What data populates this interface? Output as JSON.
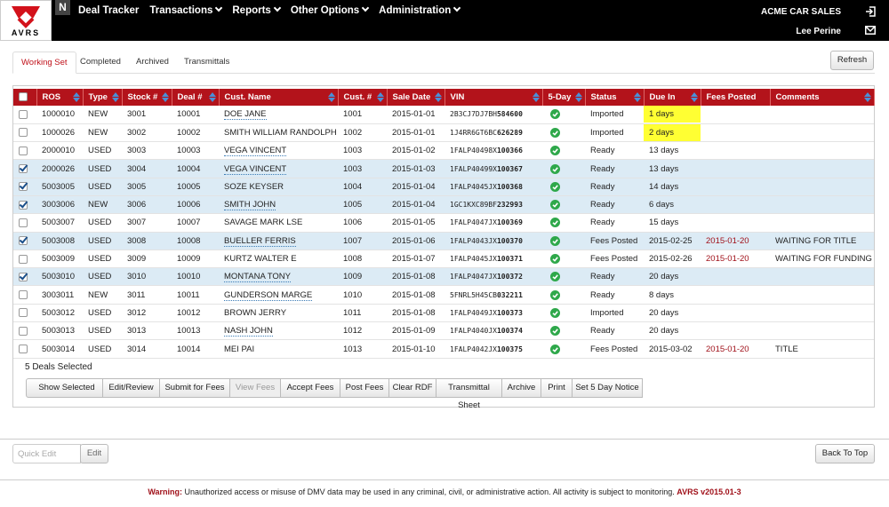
{
  "header": {
    "logo": "AVRS",
    "nav": [
      "Deal Tracker",
      "Transactions",
      "Reports",
      "Other Options",
      "Administration"
    ],
    "dealer": "ACME CAR SALES",
    "user": "Lee Perine"
  },
  "tabs": {
    "items": [
      "Working Set",
      "Completed",
      "Archived",
      "Transmittals"
    ],
    "active": 0,
    "refresh": "Refresh"
  },
  "table": {
    "columns": [
      "ROS",
      "Type",
      "Stock #",
      "Deal #",
      "Cust. Name",
      "Cust. #",
      "Sale Date",
      "VIN",
      "5-Day",
      "Status",
      "Due In",
      "Fees Posted",
      "Comments"
    ],
    "rows": [
      {
        "checked": false,
        "ros": "1000010",
        "type": "NEW",
        "stock": "3001",
        "deal": "10001",
        "name": "DOE JANE",
        "name_link": true,
        "cust": "1001",
        "sale_date": "2015-01-01",
        "vin": [
          "2B3CJ7DJ7BH",
          "584600"
        ],
        "five_day": true,
        "status": "Imported",
        "due_in": "1 days",
        "due_flag": true,
        "fees_posted": null,
        "comments": null
      },
      {
        "checked": false,
        "ros": "1000026",
        "type": "NEW",
        "stock": "3002",
        "deal": "10002",
        "name": "SMITH WILLIAM RANDOLPH",
        "name_link": false,
        "cust": "1002",
        "sale_date": "2015-01-01",
        "vin": [
          "1J4RR6GT6BC",
          "626289"
        ],
        "five_day": true,
        "status": "Imported",
        "due_in": "2 days",
        "due_flag": true,
        "fees_posted": null,
        "comments": null
      },
      {
        "checked": false,
        "ros": "2000010",
        "type": "USED",
        "stock": "3003",
        "deal": "10003",
        "name": "VEGA VINCENT",
        "name_link": true,
        "cust": "1003",
        "sale_date": "2015-01-02",
        "vin": [
          "1FALP40498X",
          "100366"
        ],
        "five_day": true,
        "status": "Ready",
        "due_in": "13 days",
        "due_flag": false,
        "fees_posted": null,
        "comments": null
      },
      {
        "checked": true,
        "ros": "2000026",
        "type": "USED",
        "stock": "3004",
        "deal": "10004",
        "name": "VEGA VINCENT",
        "name_link": true,
        "cust": "1003",
        "sale_date": "2015-01-03",
        "vin": [
          "1FALP40499X",
          "100367"
        ],
        "five_day": true,
        "status": "Ready",
        "due_in": "13 days",
        "due_flag": false,
        "fees_posted": null,
        "comments": null
      },
      {
        "checked": true,
        "ros": "5003005",
        "type": "USED",
        "stock": "3005",
        "deal": "10005",
        "name": "SOZE KEYSER",
        "name_link": false,
        "cust": "1004",
        "sale_date": "2015-01-04",
        "vin": [
          "1FALP4045JX",
          "100368"
        ],
        "five_day": true,
        "status": "Ready",
        "due_in": "14 days",
        "due_flag": false,
        "fees_posted": null,
        "comments": null
      },
      {
        "checked": true,
        "ros": "3003006",
        "type": "NEW",
        "stock": "3006",
        "deal": "10006",
        "name": "SMITH JOHN",
        "name_link": true,
        "cust": "1005",
        "sale_date": "2015-01-04",
        "vin": [
          "1GC1KXC89BF",
          "232993"
        ],
        "five_day": true,
        "status": "Ready",
        "due_in": "6 days",
        "due_flag": false,
        "fees_posted": null,
        "comments": null
      },
      {
        "checked": false,
        "ros": "5003007",
        "type": "USED",
        "stock": "3007",
        "deal": "10007",
        "name": "SAVAGE MARK LSE",
        "name_link": false,
        "cust": "1006",
        "sale_date": "2015-01-05",
        "vin": [
          "1FALP4047JX",
          "100369"
        ],
        "five_day": true,
        "status": "Ready",
        "due_in": "15 days",
        "due_flag": false,
        "fees_posted": null,
        "comments": null
      },
      {
        "checked": true,
        "ros": "5003008",
        "type": "USED",
        "stock": "3008",
        "deal": "10008",
        "name": "BUELLER FERRIS",
        "name_link": true,
        "cust": "1007",
        "sale_date": "2015-01-06",
        "vin": [
          "1FALP4043JX",
          "100370"
        ],
        "five_day": true,
        "status": "Fees Posted",
        "due_in": "2015-02-25",
        "due_flag": false,
        "fees_posted": "2015-01-20",
        "comments": "WAITING FOR TITLE"
      },
      {
        "checked": false,
        "ros": "5003009",
        "type": "USED",
        "stock": "3009",
        "deal": "10009",
        "name": "KURTZ WALTER E",
        "name_link": false,
        "cust": "1008",
        "sale_date": "2015-01-07",
        "vin": [
          "1FALP4045JX",
          "100371"
        ],
        "five_day": true,
        "status": "Fees Posted",
        "due_in": "2015-02-26",
        "due_flag": false,
        "fees_posted": "2015-01-20",
        "comments": "WAITING FOR FUNDING"
      },
      {
        "checked": true,
        "ros": "5003010",
        "type": "USED",
        "stock": "3010",
        "deal": "10010",
        "name": "MONTANA TONY",
        "name_link": true,
        "cust": "1009",
        "sale_date": "2015-01-08",
        "vin": [
          "1FALP4047JX",
          "100372"
        ],
        "five_day": true,
        "status": "Ready",
        "due_in": "20 days",
        "due_flag": false,
        "fees_posted": null,
        "comments": null
      },
      {
        "checked": false,
        "ros": "3003011",
        "type": "NEW",
        "stock": "3011",
        "deal": "10011",
        "name": "GUNDERSON MARGE",
        "name_link": true,
        "cust": "1010",
        "sale_date": "2015-01-08",
        "vin": [
          "5FNRL5H45CB",
          "032211"
        ],
        "five_day": true,
        "status": "Ready",
        "due_in": "8 days",
        "due_flag": false,
        "fees_posted": null,
        "comments": null
      },
      {
        "checked": false,
        "ros": "5003012",
        "type": "USED",
        "stock": "3012",
        "deal": "10012",
        "name": "BROWN JERRY",
        "name_link": false,
        "cust": "1011",
        "sale_date": "2015-01-08",
        "vin": [
          "1FALP4049JX",
          "100373"
        ],
        "five_day": true,
        "status": "Imported",
        "due_in": "20 days",
        "due_flag": false,
        "fees_posted": null,
        "comments": null
      },
      {
        "checked": false,
        "ros": "5003013",
        "type": "USED",
        "stock": "3013",
        "deal": "10013",
        "name": "NASH JOHN",
        "name_link": true,
        "cust": "1012",
        "sale_date": "2015-01-09",
        "vin": [
          "1FALP4040JX",
          "100374"
        ],
        "five_day": true,
        "status": "Ready",
        "due_in": "20 days",
        "due_flag": false,
        "fees_posted": null,
        "comments": null
      },
      {
        "checked": false,
        "ros": "5003014",
        "type": "USED",
        "stock": "3014",
        "deal": "10014",
        "name": "MEI PAI",
        "name_link": false,
        "cust": "1013",
        "sale_date": "2015-01-10",
        "vin": [
          "1FALP4042JX",
          "100375"
        ],
        "five_day": true,
        "status": "Fees Posted",
        "due_in": "2015-03-02",
        "due_flag": false,
        "fees_posted": "2015-01-20",
        "comments": "TITLE"
      }
    ]
  },
  "selection": "5 Deals Selected",
  "actions": {
    "show_selected": "Show Selected",
    "buttons": [
      "Edit/Review",
      "Submit for Fees",
      "View Fees",
      "Accept Fees",
      "Post Fees",
      "Clear RDF",
      "Transmittal Sheet",
      "Archive",
      "Print",
      "Set 5 Day Notice"
    ],
    "disabled_index": 2
  },
  "quick_edit": {
    "placeholder": "Quick Edit",
    "button": "Edit"
  },
  "back_to_top": "Back To Top",
  "footer": {
    "warning_label": "Warning:",
    "warning": "Unauthorized access or misuse of DMV data may be used in any criminal, civil, or administrative action. All activity is subject to monitoring.",
    "version": "AVRS v2015.01-3"
  }
}
